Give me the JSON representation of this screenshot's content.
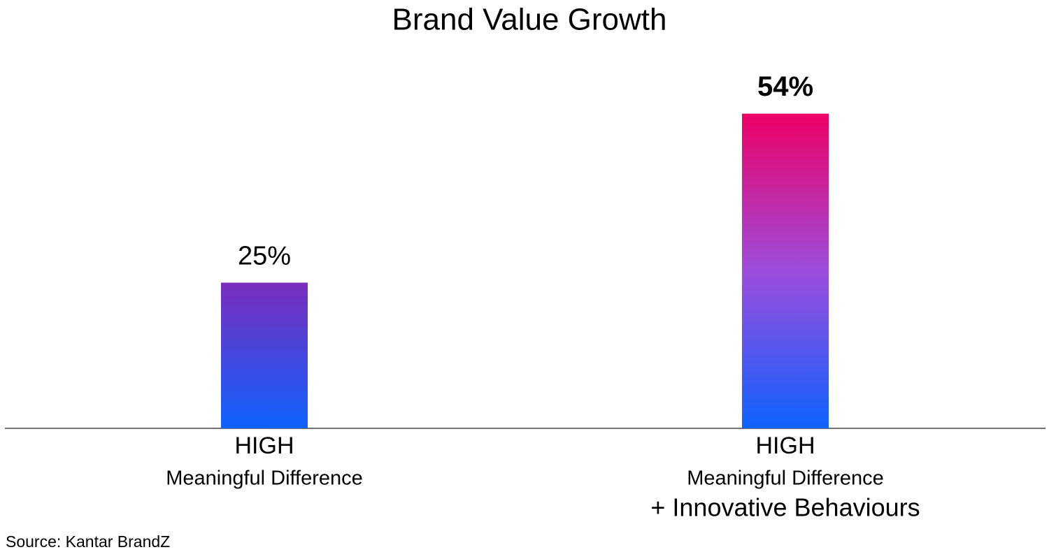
{
  "chart_data": {
    "type": "bar",
    "title": "Brand Value Growth",
    "categories": [
      [
        "HIGH",
        "Meaningful Difference"
      ],
      [
        "HIGH",
        "Meaningful Difference",
        "+ Innovative Behaviours"
      ]
    ],
    "values": [
      25,
      54
    ],
    "value_labels": [
      "25%",
      "54%"
    ],
    "value_label_bold": [
      false,
      true
    ],
    "gradients": [
      [
        "#0f62fe",
        "#7b2dbd"
      ],
      [
        "#0f62fe",
        "#9d4ddd",
        "#ee0066"
      ]
    ],
    "source": "Source: Kantar BrandZ"
  }
}
